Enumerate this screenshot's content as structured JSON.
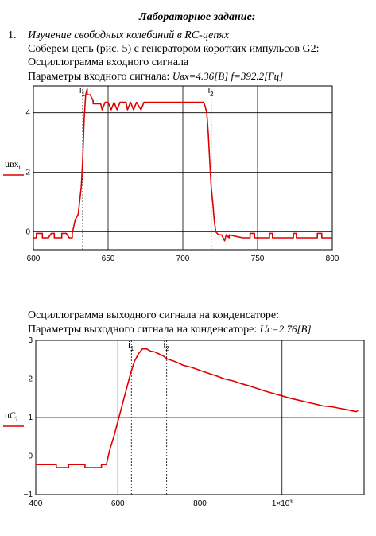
{
  "heading": "Лабораторное задание:",
  "item_number": "1.",
  "item_title": "Изучение свободных колебаний в RC-цепях",
  "line_assemble": "Соберем цепь (рис. 5) с генератором коротких импульсов G2:",
  "line_osc_in": "Осциллограмма входного сигнала",
  "line_params_in_prefix": "Параметры входного сигнала:",
  "line_params_in_formula": "Uвх=4.36[B] f=392.2[Гц]",
  "line_osc_out": "Осциллограмма выходного сигнала на конденсаторе:",
  "line_params_out_prefix": "Параметры выходного сигнала на конденсаторе:",
  "line_params_out_formula": "Uc=2.76[B]",
  "chart_data": [
    {
      "type": "line",
      "ylabel": "uвх i",
      "xlim": [
        600,
        800
      ],
      "ylim": [
        -0.6,
        4.9
      ],
      "xticks": [
        "600",
        "650",
        "700",
        "750",
        "800"
      ],
      "yticks": [
        "0",
        "2",
        "4"
      ],
      "markers": [
        {
          "label": "i1",
          "x": 633
        },
        {
          "label": "i2",
          "x": 719
        }
      ],
      "line_color": "#e00000",
      "series": [
        {
          "x": [
            600,
            602,
            602,
            606,
            606,
            610,
            612,
            614,
            614,
            619,
            619,
            622,
            624,
            626,
            626,
            628,
            630,
            632,
            633,
            634,
            635,
            636,
            636,
            638,
            640,
            640,
            642,
            645,
            646,
            648,
            650,
            652,
            654,
            656,
            658,
            660,
            662,
            663,
            665,
            667,
            669,
            672,
            674,
            676,
            680,
            690,
            700,
            705,
            708,
            712,
            714,
            715,
            716,
            717,
            718,
            719,
            720,
            721,
            722,
            724,
            726,
            728,
            729,
            731,
            731,
            740,
            745,
            745,
            748,
            748,
            758,
            758,
            760,
            760,
            774,
            774,
            776,
            776,
            790,
            790,
            793,
            793,
            800
          ],
          "y": [
            -0.2,
            -0.2,
            -0.05,
            -0.05,
            -0.2,
            -0.2,
            -0.05,
            -0.05,
            -0.2,
            -0.2,
            -0.05,
            -0.05,
            -0.2,
            -0.2,
            -0.05,
            0.4,
            0.6,
            1.5,
            2.4,
            3.8,
            4.6,
            4.8,
            4.6,
            4.6,
            4.4,
            4.3,
            4.3,
            4.3,
            4.1,
            4.35,
            4.35,
            4.1,
            4.35,
            4.1,
            4.35,
            4.35,
            4.35,
            4.1,
            4.35,
            4.1,
            4.35,
            4.1,
            4.35,
            4.35,
            4.35,
            4.35,
            4.35,
            4.35,
            4.35,
            4.35,
            4.35,
            4.2,
            4.0,
            3.3,
            2.4,
            1.5,
            1.0,
            0.4,
            0.0,
            -0.1,
            -0.1,
            -0.3,
            -0.1,
            -0.2,
            -0.1,
            -0.2,
            -0.2,
            -0.05,
            -0.05,
            -0.2,
            -0.2,
            -0.05,
            -0.05,
            -0.2,
            -0.2,
            -0.05,
            -0.05,
            -0.2,
            -0.2,
            -0.05,
            -0.05,
            -0.2,
            -0.2
          ]
        }
      ]
    },
    {
      "type": "line",
      "ylabel": "uC i",
      "xlabel": "i",
      "xlim": [
        400,
        1200
      ],
      "ylim": [
        -1,
        3
      ],
      "xticks": [
        "400",
        "600",
        "800",
        "1×10³"
      ],
      "yticks": [
        "−1",
        "0",
        "1",
        "2",
        "3"
      ],
      "markers": [
        {
          "label": "i1",
          "x": 633
        },
        {
          "label": "i2",
          "x": 719
        }
      ],
      "line_color": "#e00000",
      "series": [
        {
          "x": [
            400,
            450,
            450,
            480,
            480,
            520,
            520,
            560,
            560,
            572,
            580,
            590,
            600,
            610,
            620,
            630,
            640,
            650,
            660,
            670,
            680,
            690,
            700,
            710,
            720,
            740,
            760,
            780,
            800,
            820,
            840,
            860,
            880,
            900,
            920,
            940,
            960,
            980,
            1000,
            1020,
            1040,
            1060,
            1080,
            1100,
            1120,
            1140,
            1160,
            1180,
            1185
          ],
          "y": [
            -0.22,
            -0.22,
            -0.3,
            -0.3,
            -0.22,
            -0.22,
            -0.3,
            -0.3,
            -0.22,
            -0.22,
            0.15,
            0.5,
            0.9,
            1.3,
            1.7,
            2.1,
            2.45,
            2.65,
            2.78,
            2.78,
            2.72,
            2.7,
            2.65,
            2.6,
            2.52,
            2.45,
            2.35,
            2.3,
            2.22,
            2.15,
            2.08,
            2.0,
            1.95,
            1.88,
            1.82,
            1.75,
            1.68,
            1.62,
            1.56,
            1.5,
            1.45,
            1.4,
            1.35,
            1.3,
            1.28,
            1.24,
            1.2,
            1.15,
            1.18
          ]
        }
      ]
    }
  ]
}
